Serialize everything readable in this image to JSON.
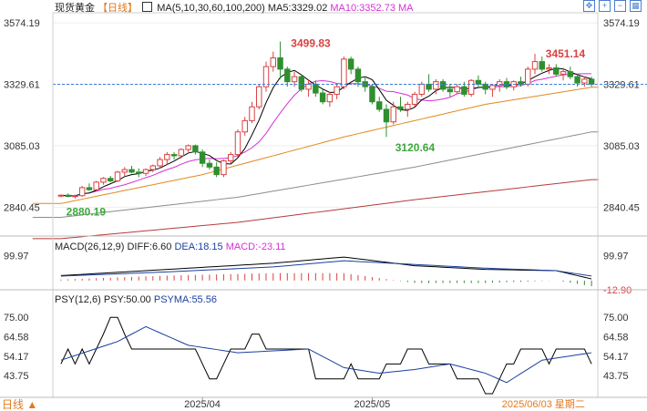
{
  "header": {
    "instrument": "现货黄金",
    "period": "【日线】",
    "ma_label": "MA(5,10,30,60,100,200)",
    "ma5": "MA5:3329.02",
    "ma10": "MA10:3352.73",
    "ma_more": "MA"
  },
  "macd_header": {
    "label": "MACD(26,12,9)",
    "diff": "DIFF:6.60",
    "dea": "DEA:18.15",
    "macd": "MACD:-23.11"
  },
  "psy_header": {
    "label": "PSY(12,6)",
    "psy": "PSY:50.00",
    "psyma": "PSYMA:55.56"
  },
  "footer": {
    "period_button": "日线 ▲",
    "cursor_date": "2025/06/03 星期二"
  },
  "toolbar_icons": [
    "crosshair-icon",
    "zoom-in-icon",
    "zoom-out-icon",
    "layout-icon"
  ],
  "colors": {
    "up": "#d94141",
    "down": "#2f8f2f",
    "ma5": "#000000",
    "ma10": "#d631d6",
    "ma30": "#e08a1e",
    "ma60": "#888888",
    "ma100": "#b33b3b",
    "last_price_line": "#3a7fd8",
    "max_label": "#d94141",
    "min_label": "#3fa63f"
  },
  "chart_data": [
    {
      "type": "candlestick",
      "name": "price",
      "x_labels": [
        "2025/04",
        "2025/05"
      ],
      "y_ticks": [
        "3574.19",
        "3329.61",
        "3085.03",
        "2840.45"
      ],
      "y_range": [
        2740,
        3600
      ],
      "annotations": {
        "high": "3499.83",
        "high_right": "3451.14",
        "low": "3120.64",
        "start_low": "2880.19",
        "last_price": "3329.61"
      },
      "ohlc": [
        [
          2885,
          2890,
          2880,
          2888
        ],
        [
          2888,
          2895,
          2880,
          2883
        ],
        [
          2883,
          2890,
          2875,
          2886
        ],
        [
          2886,
          2925,
          2882,
          2918
        ],
        [
          2918,
          2935,
          2905,
          2910
        ],
        [
          2910,
          2945,
          2905,
          2940
        ],
        [
          2940,
          2960,
          2930,
          2955
        ],
        [
          2955,
          2965,
          2940,
          2945
        ],
        [
          2945,
          2985,
          2940,
          2980
        ],
        [
          2980,
          3000,
          2965,
          2990
        ],
        [
          2990,
          3005,
          2975,
          2980
        ],
        [
          2980,
          2995,
          2960,
          2975
        ],
        [
          2975,
          2995,
          2965,
          2990
        ],
        [
          2990,
          3010,
          2980,
          3005
        ],
        [
          3005,
          3040,
          2995,
          3030
        ],
        [
          3030,
          3060,
          3010,
          3050
        ],
        [
          3050,
          3060,
          3030,
          3045
        ],
        [
          3045,
          3075,
          3035,
          3070
        ],
        [
          3070,
          3090,
          3060,
          3085
        ],
        [
          3085,
          3090,
          3050,
          3060
        ],
        [
          3060,
          3070,
          3000,
          3015
        ],
        [
          3015,
          3030,
          2990,
          3000
        ],
        [
          3000,
          3020,
          2960,
          2970
        ],
        [
          2970,
          3030,
          2960,
          3025
        ],
        [
          3025,
          3060,
          3015,
          3050
        ],
        [
          3050,
          3150,
          3040,
          3140
        ],
        [
          3140,
          3200,
          3125,
          3185
        ],
        [
          3185,
          3260,
          3175,
          3240
        ],
        [
          3240,
          3330,
          3230,
          3320
        ],
        [
          3320,
          3420,
          3300,
          3400
        ],
        [
          3400,
          3460,
          3380,
          3435
        ],
        [
          3435,
          3500,
          3350,
          3390
        ],
        [
          3390,
          3400,
          3320,
          3340
        ],
        [
          3340,
          3380,
          3320,
          3360
        ],
        [
          3360,
          3370,
          3300,
          3310
        ],
        [
          3310,
          3350,
          3280,
          3330
        ],
        [
          3330,
          3345,
          3280,
          3295
        ],
        [
          3295,
          3310,
          3250,
          3260
        ],
        [
          3260,
          3300,
          3240,
          3290
        ],
        [
          3290,
          3330,
          3270,
          3320
        ],
        [
          3320,
          3440,
          3310,
          3430
        ],
        [
          3430,
          3440,
          3370,
          3390
        ],
        [
          3390,
          3400,
          3320,
          3340
        ],
        [
          3340,
          3360,
          3300,
          3320
        ],
        [
          3320,
          3330,
          3250,
          3260
        ],
        [
          3260,
          3280,
          3220,
          3230
        ],
        [
          3230,
          3250,
          3120,
          3180
        ],
        [
          3180,
          3260,
          3170,
          3240
        ],
        [
          3240,
          3280,
          3220,
          3230
        ],
        [
          3230,
          3260,
          3200,
          3250
        ],
        [
          3250,
          3300,
          3240,
          3290
        ],
        [
          3290,
          3340,
          3280,
          3330
        ],
        [
          3330,
          3370,
          3300,
          3310
        ],
        [
          3310,
          3350,
          3290,
          3340
        ],
        [
          3340,
          3350,
          3300,
          3310
        ],
        [
          3310,
          3330,
          3280,
          3300
        ],
        [
          3300,
          3330,
          3290,
          3320
        ],
        [
          3320,
          3340,
          3280,
          3290
        ],
        [
          3290,
          3350,
          3280,
          3345
        ],
        [
          3345,
          3365,
          3320,
          3330
        ],
        [
          3330,
          3340,
          3290,
          3310
        ],
        [
          3310,
          3330,
          3280,
          3325
        ],
        [
          3325,
          3350,
          3300,
          3340
        ],
        [
          3340,
          3355,
          3310,
          3320
        ],
        [
          3320,
          3345,
          3305,
          3340
        ],
        [
          3340,
          3360,
          3320,
          3330
        ],
        [
          3330,
          3400,
          3320,
          3390
        ],
        [
          3390,
          3451,
          3370,
          3420
        ],
        [
          3420,
          3440,
          3380,
          3390
        ],
        [
          3390,
          3410,
          3370,
          3395
        ],
        [
          3395,
          3410,
          3360,
          3370
        ],
        [
          3370,
          3395,
          3345,
          3380
        ],
        [
          3380,
          3400,
          3350,
          3360
        ],
        [
          3360,
          3370,
          3320,
          3335
        ],
        [
          3335,
          3360,
          3320,
          3350
        ],
        [
          3350,
          3360,
          3320,
          3330
        ]
      ],
      "ma_anchors": {
        "ma30": [
          [
            0,
            2855
          ],
          [
            20,
            2970
          ],
          [
            40,
            3120
          ],
          [
            60,
            3250
          ],
          [
            75,
            3318
          ]
        ],
        "ma60": [
          [
            0,
            2800
          ],
          [
            25,
            2880
          ],
          [
            50,
            3000
          ],
          [
            75,
            3140
          ]
        ],
        "ma100": [
          [
            0,
            2715
          ],
          [
            25,
            2780
          ],
          [
            50,
            2870
          ],
          [
            75,
            2950
          ]
        ]
      }
    },
    {
      "type": "line",
      "name": "MACD",
      "y_ticks": [
        "99.97",
        "-12.90"
      ],
      "y_range": [
        -30,
        110
      ],
      "series": [
        {
          "name": "DIFF",
          "anchors": [
            [
              0,
              20
            ],
            [
              15,
              45
            ],
            [
              30,
              70
            ],
            [
              40,
              95
            ],
            [
              50,
              60
            ],
            [
              60,
              45
            ],
            [
              70,
              40
            ],
            [
              75,
              6.6
            ]
          ]
        },
        {
          "name": "DEA",
          "anchors": [
            [
              0,
              18
            ],
            [
              15,
              35
            ],
            [
              30,
              55
            ],
            [
              40,
              80
            ],
            [
              50,
              65
            ],
            [
              60,
              50
            ],
            [
              70,
              40
            ],
            [
              75,
              18.15
            ]
          ]
        }
      ]
    },
    {
      "type": "line",
      "name": "PSY",
      "y_ticks": [
        "75.00",
        "64.58",
        "54.17",
        "43.75"
      ],
      "y_range": [
        35,
        80
      ],
      "series": [
        {
          "name": "PSY",
          "values": [
            50,
            58,
            50,
            58,
            50,
            58,
            66,
            75,
            75,
            66,
            58,
            58,
            58,
            58,
            58,
            58,
            58,
            58,
            58,
            58,
            50,
            42,
            42,
            50,
            58,
            58,
            58,
            66,
            66,
            58,
            58,
            58,
            58,
            58,
            58,
            58,
            42,
            42,
            42,
            42,
            42,
            50,
            42,
            42,
            42,
            42,
            50,
            50,
            50,
            58,
            58,
            58,
            50,
            50,
            50,
            50,
            42,
            42,
            42,
            42,
            34,
            34,
            42,
            50,
            50,
            58,
            58,
            58,
            58,
            50,
            58,
            58,
            58,
            58,
            58,
            50
          ]
        },
        {
          "name": "PSYMA",
          "anchors": [
            [
              0,
              52
            ],
            [
              8,
              62
            ],
            [
              12,
              70
            ],
            [
              18,
              60
            ],
            [
              25,
              56
            ],
            [
              35,
              58
            ],
            [
              40,
              48
            ],
            [
              45,
              45
            ],
            [
              50,
              47
            ],
            [
              55,
              50
            ],
            [
              60,
              45
            ],
            [
              63,
              40
            ],
            [
              68,
              52
            ],
            [
              75,
              56
            ]
          ]
        }
      ]
    }
  ]
}
